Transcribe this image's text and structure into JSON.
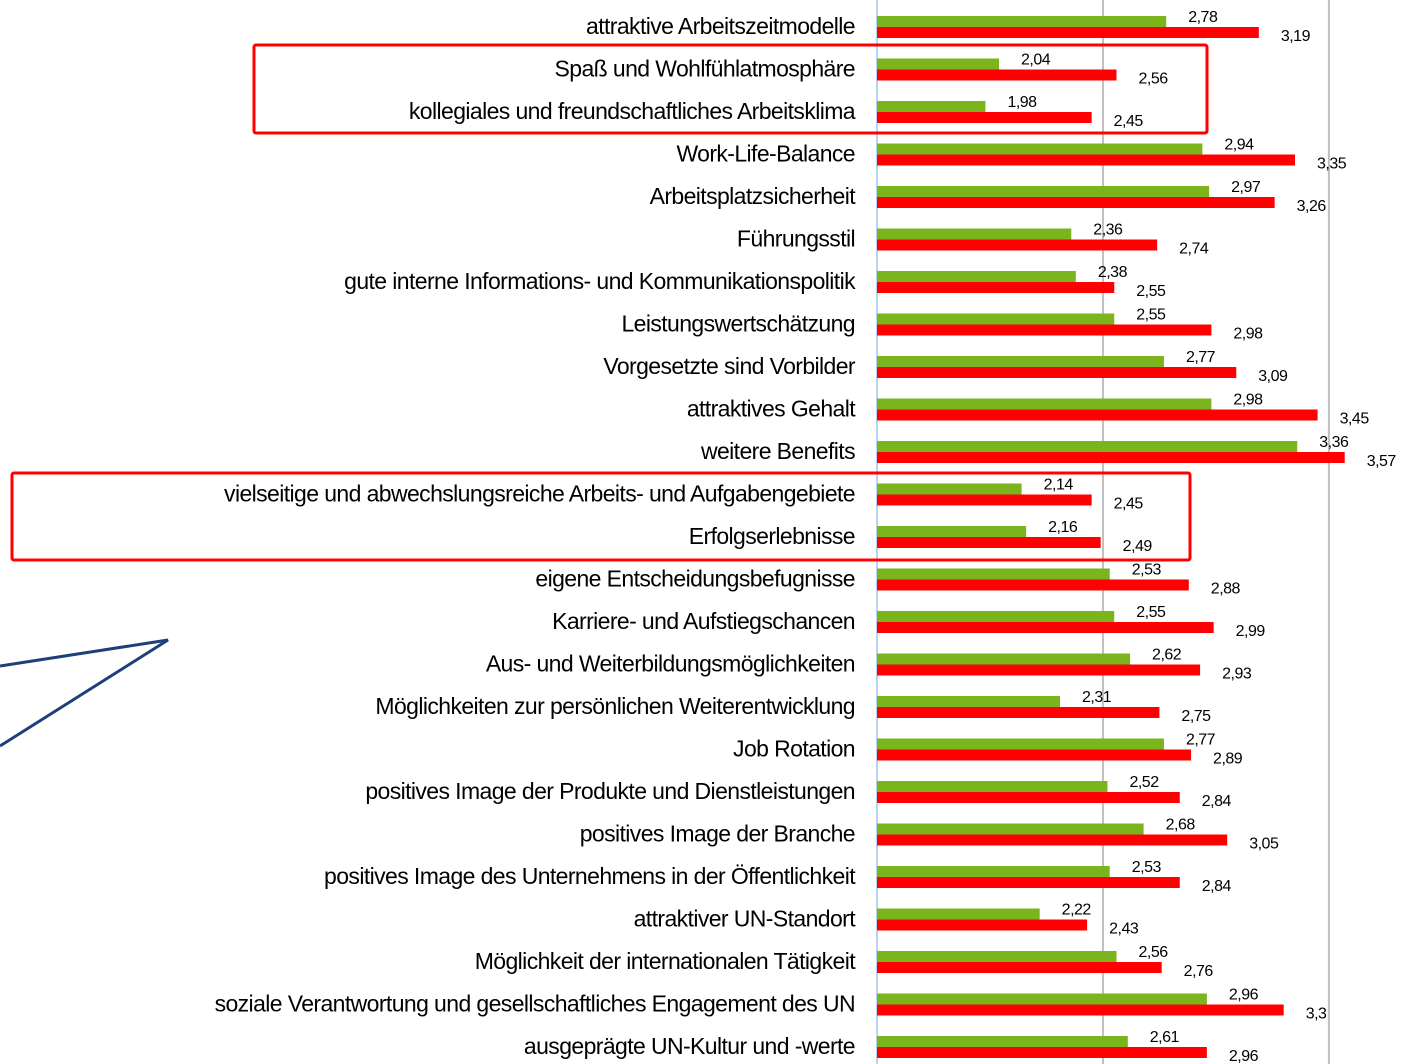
{
  "chart_data": {
    "type": "barh",
    "categories": [
      "attraktive Arbeitszeitmodelle",
      "Spaß und Wohlfühlatmosphäre",
      "kollegiales und freundschaftliches Arbeitsklima",
      "Work-Life-Balance",
      "Arbeitsplatzsicherheit",
      "Führungsstil",
      "gute interne Informations- und Kommunikationspolitik",
      "Leistungswertschätzung",
      "Vorgesetzte sind Vorbilder",
      "attraktives Gehalt",
      "weitere Benefits",
      "vielseitige und abwechslungsreiche Arbeits- und Aufgabengebiete",
      "Erfolgserlebnisse",
      "eigene Entscheidungsbefugnisse",
      "Karriere- und Aufstiegschancen",
      "Aus- und Weiterbildungsmöglichkeiten",
      "Möglichkeiten zur persönlichen Weiterentwicklung",
      "Job Rotation",
      "positives Image der Produkte und Dienstleistungen",
      "positives Image der Branche",
      "positives Image des Unternehmens in der Öffentlichkeit",
      "attraktiver UN-Standort",
      "Möglichkeit der internationalen Tätigkeit",
      "soziale Verantwortung und gesellschaftliches Engagement des UN",
      "ausgeprägte UN-Kultur und -werte"
    ],
    "series": [
      {
        "color": "#7ab51d",
        "values": [
          2.78,
          2.04,
          1.98,
          2.94,
          2.97,
          2.36,
          2.38,
          2.55,
          2.77,
          2.98,
          3.36,
          2.14,
          2.16,
          2.53,
          2.55,
          2.62,
          2.31,
          2.77,
          2.52,
          2.68,
          2.53,
          2.22,
          2.56,
          2.96,
          2.61
        ],
        "value_labels": [
          "2,78",
          "2,04",
          "1,98",
          "2,94",
          "2,97",
          "2,36",
          "2,38",
          "2,55",
          "2,77",
          "2,98",
          "3,36",
          "2,14",
          "2,16",
          "2,53",
          "2,55",
          "2,62",
          "2,31",
          "2,77",
          "2,52",
          "2,68",
          "2,53",
          "2,22",
          "2,56",
          "2,96",
          "2,61"
        ]
      },
      {
        "color": "#ff0000",
        "values": [
          3.19,
          2.56,
          2.45,
          3.35,
          3.26,
          2.74,
          2.55,
          2.98,
          3.09,
          3.45,
          3.57,
          2.45,
          2.49,
          2.88,
          2.99,
          2.93,
          2.75,
          2.89,
          2.84,
          3.05,
          2.84,
          2.43,
          2.76,
          3.3,
          2.96
        ],
        "value_labels": [
          "3,19",
          "2,56",
          "2,45",
          "3,35",
          "3,26",
          "2,74",
          "2,55",
          "2,98",
          "3,09",
          "3,45",
          "3,57",
          "2,45",
          "2,49",
          "2,88",
          "2,99",
          "2,93",
          "2,75",
          "2,89",
          "2,84",
          "3,05",
          "2,84",
          "2,43",
          "2,76",
          "3,3",
          "2,96"
        ]
      }
    ],
    "xlim": [
      1.5,
      3.89
    ],
    "xticks": [
      1.5,
      2.5,
      3.5
    ],
    "grid": true
  }
}
